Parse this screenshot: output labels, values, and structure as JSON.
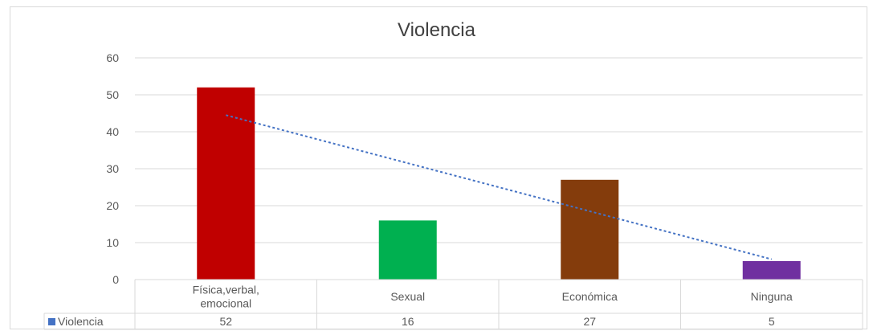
{
  "chart_data": {
    "type": "bar",
    "title": "Violencia",
    "categories": [
      "Física,verbal,\nemocional",
      "Sexual",
      "Económica",
      "Ninguna"
    ],
    "series": [
      {
        "name": "Violencia",
        "values": [
          52,
          16,
          27,
          5
        ]
      }
    ],
    "colors": [
      "#c00000",
      "#00b050",
      "#843c0c",
      "#7030a0"
    ],
    "legend_color": "#4472c4",
    "trendline": {
      "type": "linear",
      "color": "#4472c4",
      "style": "dotted"
    },
    "ylim": [
      0,
      60
    ],
    "yticks": [
      0,
      10,
      20,
      30,
      40,
      50,
      60
    ],
    "grid": true,
    "data_table": true,
    "xlabel": "",
    "ylabel": ""
  }
}
